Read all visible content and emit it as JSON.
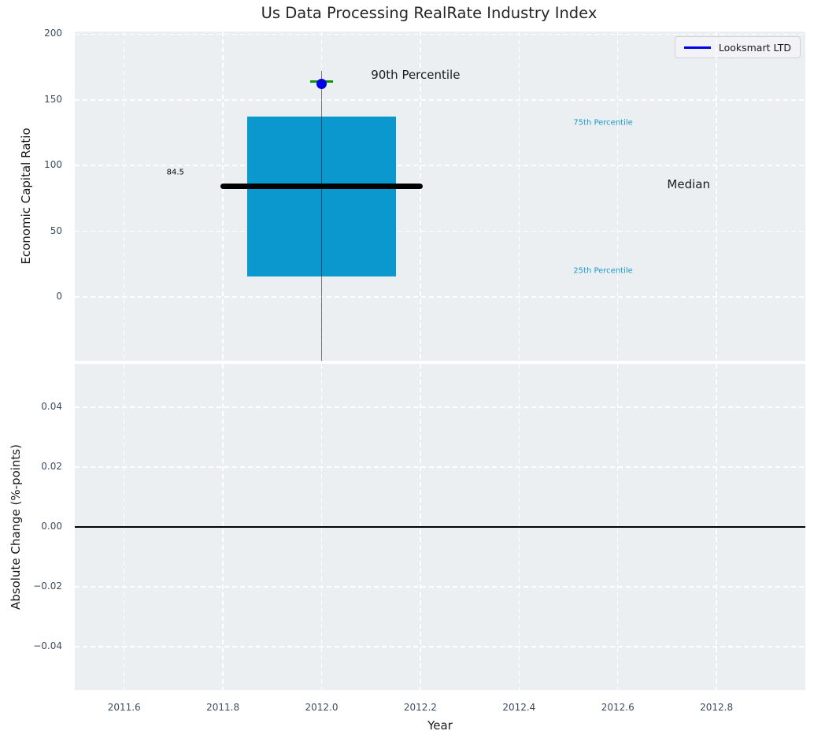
{
  "figure": {
    "title": "Us Data Processing RealRate Industry Index",
    "background": "#ffffff",
    "panel_background": "#eceff1",
    "grid_color": "#ffffff",
    "tick_color": "#3c4b60",
    "text_color": "#1a1a1a"
  },
  "chart_data": [
    {
      "type": "boxplot",
      "title": "Us Data Processing RealRate Industry Index",
      "ylabel": "Economic Capital Ratio",
      "xlabel": "",
      "xlim": [
        2011.5,
        2012.98
      ],
      "ylim": [
        -48.5,
        202
      ],
      "yticks": [
        0,
        50,
        100,
        150,
        200
      ],
      "ytick_labels": [
        "0",
        "50",
        "100",
        "150",
        "200"
      ],
      "grid": true,
      "legend": {
        "position": "upper right",
        "entries": [
          {
            "label": "Looksmart LTD",
            "color": "#0000e6"
          }
        ]
      },
      "series": [
        {
          "name": "Looksmart LTD",
          "x": 2012.0,
          "q1": 15.5,
          "median": 84.5,
          "q3": 137,
          "p90_point": 162,
          "p90_cap": 164,
          "whisker_top": 172,
          "box_width_years": 0.3,
          "median_width_years": 0.41,
          "cap_width_years": 0.046,
          "box_color": "#0a98ce",
          "median_color": "#000000",
          "whisker_color": "rgba(35,35,35,0.6)",
          "cap_color": "#089908",
          "point_color": "#0000e6"
        }
      ],
      "annotations": [
        {
          "text": "90th Percentile",
          "x": 2012.1,
          "y": 169,
          "color": "#1a1a1a",
          "size": 15
        },
        {
          "text": "75th Percentile",
          "x": 2012.51,
          "y": 132.5,
          "color": "#1a9ad2",
          "size": 10
        },
        {
          "text": "Median",
          "x": 2012.7,
          "y": 85.5,
          "color": "#1a1a1a",
          "size": 15
        },
        {
          "text": "25th Percentile",
          "x": 2012.51,
          "y": 20,
          "color": "#1a9ad2",
          "size": 10
        },
        {
          "text": "84.5",
          "x": 2011.686,
          "y": 94.5,
          "color": "#000000",
          "size": 10
        }
      ]
    },
    {
      "type": "line",
      "ylabel": "Absolute Change (%-points)",
      "xlabel": "Year",
      "xlim": [
        2011.5,
        2012.98
      ],
      "ylim": [
        -0.0545,
        0.0545
      ],
      "yticks": [
        0.04,
        0.02,
        0,
        -0.02,
        -0.04
      ],
      "ytick_labels": [
        "0.04",
        "0.02",
        "0.00",
        "−0.02",
        "−0.04"
      ],
      "xticks": [
        2011.6,
        2011.8,
        2012.0,
        2012.2,
        2012.4,
        2012.6,
        2012.8
      ],
      "xtick_labels": [
        "2011.6",
        "2011.8",
        "2012.0",
        "2012.2",
        "2012.4",
        "2012.6",
        "2012.8"
      ],
      "zero_line_y": 0,
      "series": []
    }
  ]
}
